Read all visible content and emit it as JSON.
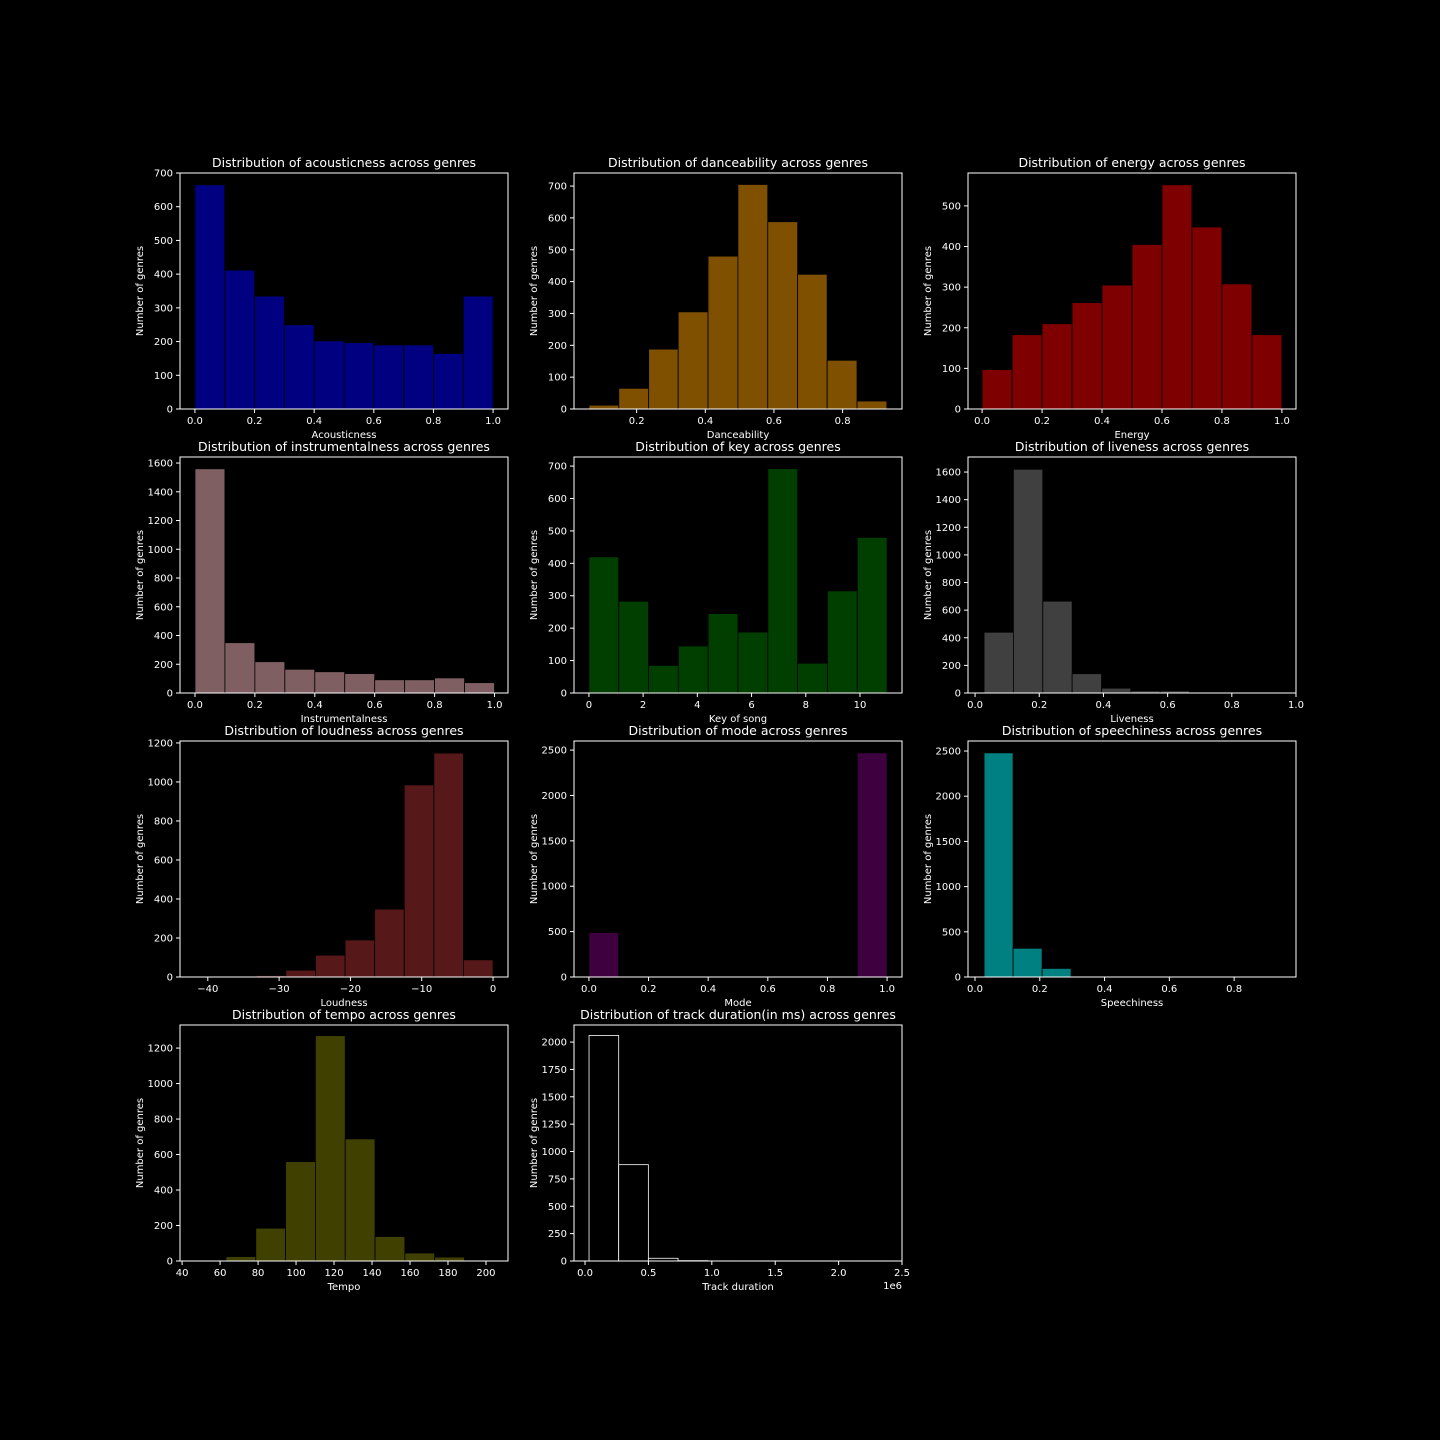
{
  "chart_data": [
    {
      "type": "histogram",
      "title": "Distribution of acousticness across genres",
      "xlabel": "Acousticness",
      "ylabel": "Number of genres",
      "color": "#000080",
      "edgecolor": "#000000",
      "bins": [
        0.0,
        0.1,
        0.2,
        0.3,
        0.4,
        0.5,
        0.6,
        0.7,
        0.8,
        0.9,
        1.0
      ],
      "counts": [
        665,
        412,
        335,
        250,
        202,
        197,
        190,
        190,
        165,
        335
      ],
      "xlim": [
        -0.05,
        1.05
      ],
      "ylim": [
        0,
        700
      ],
      "xticks": [
        {
          "value": 0,
          "label": "0.0"
        },
        0.2,
        0.4,
        0.6,
        0.8,
        {
          "value": 1,
          "label": "1.0"
        }
      ],
      "yticks": [
        0,
        100,
        200,
        300,
        400,
        500,
        600,
        700
      ]
    },
    {
      "type": "histogram",
      "title": "Distribution of danceability across genres",
      "xlabel": "Danceability",
      "ylabel": "Number of genres",
      "color": "#7f5000",
      "edgecolor": "#000000",
      "bins": [
        0.061,
        0.148,
        0.235,
        0.321,
        0.408,
        0.495,
        0.582,
        0.669,
        0.755,
        0.842,
        0.929
      ],
      "counts": [
        12,
        65,
        188,
        305,
        480,
        705,
        588,
        423,
        153,
        25
      ],
      "xlim": [
        0.0175,
        0.973
      ],
      "ylim": [
        0,
        741
      ],
      "xticks": [
        0.2,
        0.4,
        0.6,
        0.8
      ],
      "yticks": [
        0,
        100,
        200,
        300,
        400,
        500,
        600,
        700
      ]
    },
    {
      "type": "histogram",
      "title": "Distribution of energy across genres",
      "xlabel": "Energy",
      "ylabel": "Number of genres",
      "color": "#7f0000",
      "edgecolor": "#000000",
      "bins": [
        0.0,
        0.1,
        0.2,
        0.3,
        0.4,
        0.5,
        0.6,
        0.7,
        0.8,
        0.9,
        1.0
      ],
      "counts": [
        97,
        183,
        210,
        262,
        305,
        405,
        552,
        448,
        308,
        183
      ],
      "xlim": [
        -0.047,
        1.047
      ],
      "ylim": [
        0,
        581
      ],
      "xticks": [
        {
          "value": 0,
          "label": "0.0"
        },
        0.2,
        0.4,
        0.6,
        0.8,
        {
          "value": 1,
          "label": "1.0"
        }
      ],
      "yticks": [
        0,
        100,
        200,
        300,
        400,
        500
      ]
    },
    {
      "type": "histogram",
      "title": "Distribution of instrumentalness across genres",
      "xlabel": "Instrumentalness",
      "ylabel": "Number of genres",
      "color": "#7f5f62",
      "edgecolor": "#000000",
      "bins": [
        0.0,
        0.1,
        0.2,
        0.3,
        0.4,
        0.5,
        0.6,
        0.7,
        0.8,
        0.9,
        1.0
      ],
      "counts": [
        1560,
        350,
        218,
        165,
        148,
        135,
        92,
        92,
        105,
        72
      ],
      "xlim": [
        -0.05,
        1.045
      ],
      "ylim": [
        0,
        1642
      ],
      "xticks": [
        {
          "value": 0,
          "label": "0.0"
        },
        0.2,
        0.4,
        0.6,
        0.8,
        {
          "value": 1,
          "label": "1.0"
        }
      ],
      "yticks": [
        0,
        200,
        400,
        600,
        800,
        1000,
        1200,
        1400,
        1600
      ]
    },
    {
      "type": "histogram",
      "title": "Distribution of key across genres",
      "xlabel": "Key of song",
      "ylabel": "Number of genres",
      "color": "#003f00",
      "edgecolor": "#000000",
      "bins": [
        0,
        1.1,
        2.2,
        3.3,
        4.4,
        5.5,
        6.6,
        7.7,
        8.8,
        9.9,
        11
      ],
      "counts": [
        420,
        283,
        85,
        145,
        245,
        188,
        692,
        92,
        315,
        480
      ],
      "xlim": [
        -0.55,
        11.55
      ],
      "ylim": [
        0,
        728
      ],
      "xticks": [
        0,
        2,
        4,
        6,
        8,
        10
      ],
      "yticks": [
        0,
        100,
        200,
        300,
        400,
        500,
        600,
        700
      ]
    },
    {
      "type": "histogram",
      "title": "Distribution of liveness across genres",
      "xlabel": "Liveness",
      "ylabel": "Number of genres",
      "color": "#404040",
      "edgecolor": "#000000",
      "bins": [
        0.028,
        0.1195,
        0.211,
        0.3025,
        0.394,
        0.4855,
        0.577,
        0.6685,
        0.76,
        0.8515,
        0.943
      ],
      "counts": [
        440,
        1620,
        665,
        140,
        35,
        15,
        15,
        5,
        3,
        2
      ],
      "xlim": [
        -0.022,
        1.0
      ],
      "ylim": [
        0,
        1709
      ],
      "xticks": [
        {
          "value": 0,
          "label": "0.0"
        },
        0.2,
        0.4,
        0.6,
        0.8,
        {
          "value": 1,
          "label": "1.0"
        }
      ],
      "yticks": [
        0,
        200,
        400,
        600,
        800,
        1000,
        1200,
        1400,
        1600
      ]
    },
    {
      "type": "histogram",
      "title": "Distribution of loudness across genres",
      "xlabel": "Loudness",
      "ylabel": "Number of genres",
      "color": "#571819",
      "edgecolor": "#000000",
      "bins": [
        -41.5,
        -37.35,
        -33.2,
        -29.05,
        -24.9,
        -20.75,
        -16.6,
        -12.45,
        -8.3,
        -4.15,
        0.0
      ],
      "counts": [
        1,
        2,
        8,
        35,
        112,
        190,
        348,
        985,
        1148,
        88
      ],
      "xlim": [
        -43.9,
        2.1
      ],
      "ylim": [
        0,
        1210
      ],
      "xticks": [
        {
          "value": -40,
          "label": "−40"
        },
        {
          "value": -30,
          "label": "−30"
        },
        {
          "value": -20,
          "label": "−20"
        },
        {
          "value": -10,
          "label": "−10"
        },
        0
      ],
      "yticks": [
        0,
        200,
        400,
        600,
        800,
        1000,
        1200
      ]
    },
    {
      "type": "histogram",
      "title": "Distribution of mode across genres",
      "xlabel": "Mode",
      "ylabel": "Number of genres",
      "color": "#3f003f",
      "edgecolor": "#000000",
      "bins": [
        0.0,
        0.1,
        0.2,
        0.3,
        0.4,
        0.5,
        0.6,
        0.7,
        0.8,
        0.9,
        1.0
      ],
      "counts": [
        490,
        0,
        0,
        0,
        0,
        0,
        0,
        0,
        0,
        2470
      ],
      "xlim": [
        -0.05,
        1.05
      ],
      "ylim": [
        0,
        2600
      ],
      "xticks": [
        {
          "value": 0,
          "label": "0.0"
        },
        0.2,
        0.4,
        0.6,
        0.8,
        {
          "value": 1,
          "label": "1.0"
        }
      ],
      "yticks": [
        0,
        500,
        1000,
        1500,
        2000,
        2500
      ]
    },
    {
      "type": "histogram",
      "title": "Distribution of speechiness across genres",
      "xlabel": "Speechiness",
      "ylabel": "Number of genres",
      "color": "#008080",
      "edgecolor": "#000000",
      "bins": [
        0.028,
        0.1176,
        0.2072,
        0.2968,
        0.3864,
        0.476,
        0.5656,
        0.6552,
        0.7448,
        0.8344,
        0.924
      ],
      "counts": [
        2480,
        318,
        95,
        8,
        3,
        2,
        1,
        1,
        0,
        1
      ],
      "xlim": [
        -0.0216,
        0.991
      ],
      "ylim": [
        0,
        2611
      ],
      "xticks": [
        {
          "value": 0,
          "label": "0.0"
        },
        0.2,
        0.4,
        0.6,
        0.8
      ],
      "yticks": [
        0,
        500,
        1000,
        1500,
        2000,
        2500
      ]
    },
    {
      "type": "histogram",
      "title": "Distribution of tempo across genres",
      "xlabel": "Tempo",
      "ylabel": "Number of genres",
      "color": "#404000",
      "edgecolor": "#000000",
      "bins": [
        47.4,
        63.1,
        78.8,
        94.5,
        110.2,
        125.9,
        141.6,
        157.3,
        173.0,
        188.7,
        204.4
      ],
      "counts": [
        2,
        25,
        185,
        560,
        1270,
        688,
        138,
        45,
        22,
        2
      ],
      "xlim": [
        38.9,
        211.6
      ],
      "ylim": [
        0,
        1330
      ],
      "xticks": [
        40,
        60,
        80,
        100,
        120,
        140,
        160,
        180,
        200
      ],
      "yticks": [
        0,
        200,
        400,
        600,
        800,
        1000,
        1200
      ]
    },
    {
      "type": "histogram",
      "title": "Distribution of track duration(in ms) across genres",
      "xlabel": "Track duration",
      "ylabel": "Number of genres",
      "color": "#000000",
      "edgecolor": "#ffffff",
      "offset_label": "1e6",
      "bins": [
        31500,
        265500,
        499500,
        733500,
        967500,
        1201500,
        1435500,
        1669500,
        1903500,
        2137500,
        2371500
      ],
      "counts": [
        2060,
        880,
        25,
        3,
        1,
        0,
        0,
        0,
        0,
        1
      ],
      "xlim": [
        -87000,
        2500000
      ],
      "ylim": [
        0,
        2156
      ],
      "xticks": [
        {
          "value": 0,
          "label": "0.0"
        },
        {
          "value": 500000,
          "label": "0.5"
        },
        {
          "value": 1000000,
          "label": "1.0"
        },
        {
          "value": 1500000,
          "label": "1.5"
        },
        {
          "value": 2000000,
          "label": "2.0"
        },
        {
          "value": 2500000,
          "label": "2.5"
        }
      ],
      "yticks": [
        0,
        250,
        500,
        750,
        1000,
        1250,
        1500,
        1750,
        2000
      ]
    }
  ]
}
